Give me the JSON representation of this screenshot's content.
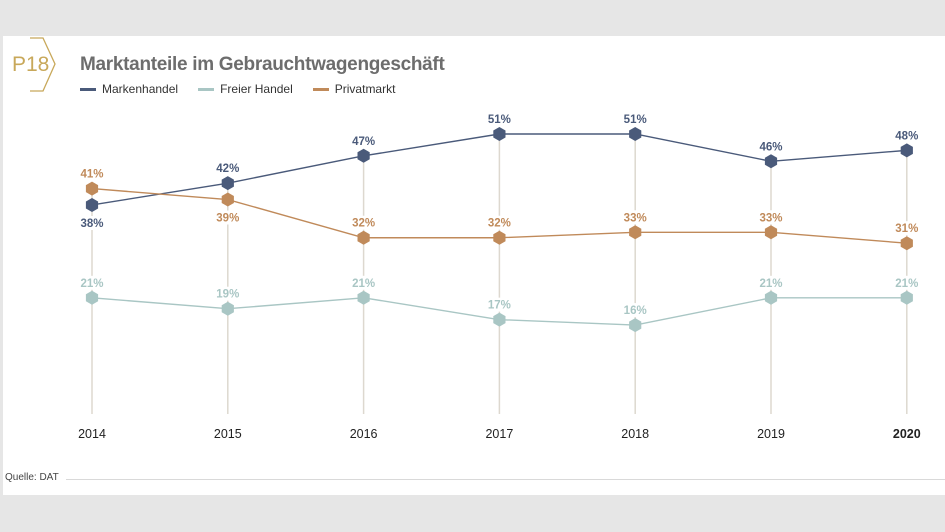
{
  "badge": "P18",
  "chart_data": {
    "type": "line",
    "title": "Marktanteile im Gebrauchtwagengeschäft",
    "categories": [
      "2014",
      "2015",
      "2016",
      "2017",
      "2018",
      "2019",
      "2020"
    ],
    "highlight_category": "2020",
    "series": [
      {
        "name": "Markenhandel",
        "color": "#4a5a7a",
        "values": [
          38,
          42,
          47,
          51,
          51,
          46,
          48
        ],
        "labels": [
          "38%",
          "42%",
          "47%",
          "51%",
          "51%",
          "46%",
          "48%"
        ],
        "label_pos": [
          "below",
          "above",
          "above",
          "above",
          "above",
          "above",
          "above"
        ]
      },
      {
        "name": "Freier Handel",
        "color": "#a9c6c4",
        "values": [
          21,
          19,
          21,
          17,
          16,
          21,
          21
        ],
        "labels": [
          "21%",
          "19%",
          "21%",
          "17%",
          "16%",
          "21%",
          "21%"
        ],
        "label_pos": [
          "above",
          "above",
          "above",
          "above",
          "above",
          "above",
          "above"
        ]
      },
      {
        "name": "Privatmarkt",
        "color": "#c08a5a",
        "values": [
          41,
          39,
          32,
          32,
          33,
          33,
          31
        ],
        "labels": [
          "41%",
          "39%",
          "32%",
          "32%",
          "33%",
          "33%",
          "31%"
        ],
        "label_pos": [
          "above",
          "below",
          "above",
          "above",
          "above",
          "above",
          "above"
        ]
      }
    ],
    "legend_position": "top-left",
    "grid": false,
    "ylim": [
      0,
      55
    ]
  },
  "source": "Quelle: DAT"
}
